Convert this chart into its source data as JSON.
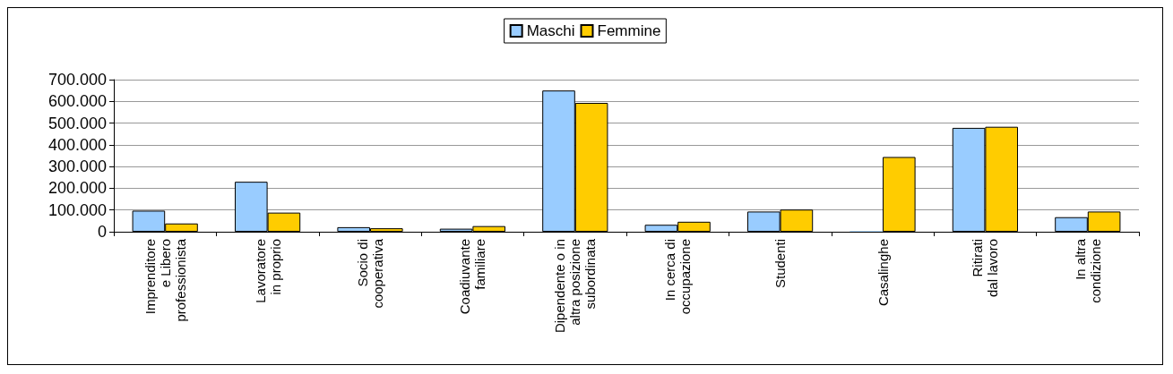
{
  "chart_data": {
    "type": "bar",
    "categories": [
      "Imprenditore\ne Libero\nprofessionista",
      "Lavoratore\nin proprio",
      "Socio di\ncooperativa",
      "Coadiuvante\nfamiliare",
      "Dipendente o in\naltra posizione\nsubordinata",
      "In cerca di\noccupazione",
      "Studenti",
      "Casalinghe",
      "Ritirati\ndal lavoro",
      "In altra\ncondizione"
    ],
    "series": [
      {
        "name": "Maschi",
        "color": "#99ccff",
        "values": [
          97000,
          230000,
          21000,
          14000,
          650000,
          32000,
          93000,
          3000,
          478000,
          67000
        ]
      },
      {
        "name": "Femmine",
        "color": "#ffcc00",
        "values": [
          38000,
          88000,
          16000,
          26000,
          593000,
          46000,
          102000,
          344000,
          483000,
          93000
        ]
      }
    ],
    "ylim": [
      0,
      700000
    ],
    "yticks": [
      {
        "value": 0,
        "label": "0"
      },
      {
        "value": 100000,
        "label": "100.000"
      },
      {
        "value": 200000,
        "label": "200.000"
      },
      {
        "value": 300000,
        "label": "300.000"
      },
      {
        "value": 400000,
        "label": "400.000"
      },
      {
        "value": 500000,
        "label": "500.000"
      },
      {
        "value": 600000,
        "label": "600.000"
      },
      {
        "value": 700000,
        "label": "700.000"
      }
    ],
    "grid": "y",
    "legend": "top"
  }
}
